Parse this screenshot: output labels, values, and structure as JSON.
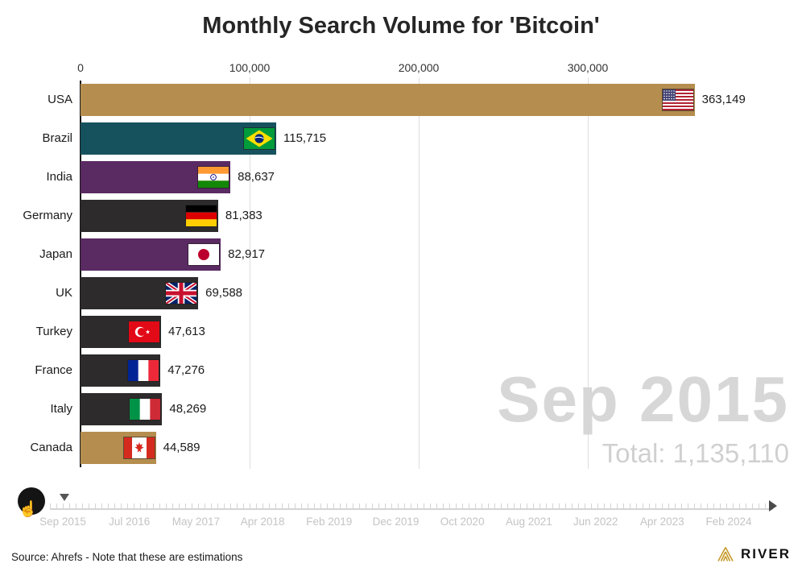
{
  "title": "Monthly Search Volume for 'Bitcoin'",
  "chart_data": {
    "type": "bar",
    "orientation": "horizontal",
    "current_period": "Sep 2015",
    "total_label": "Total: 1,135,110",
    "xlim": [
      0,
      380000
    ],
    "grid": true,
    "x_ticks": [
      {
        "label": "0",
        "value": 0
      },
      {
        "label": "100,000",
        "value": 100000
      },
      {
        "label": "200,000",
        "value": 200000
      },
      {
        "label": "300,000",
        "value": 300000
      }
    ],
    "bars": [
      {
        "country": "USA",
        "value": 363149,
        "label": "363,149",
        "color": "#b58e4f",
        "flag": "usa"
      },
      {
        "country": "Brazil",
        "value": 115715,
        "label": "115,715",
        "color": "#16525e",
        "flag": "brazil"
      },
      {
        "country": "India",
        "value": 88637,
        "label": "88,637",
        "color": "#5a2a62",
        "flag": "india"
      },
      {
        "country": "Germany",
        "value": 81383,
        "label": "81,383",
        "color": "#2d2b2c",
        "flag": "germany"
      },
      {
        "country": "Japan",
        "value": 82917,
        "label": "82,917",
        "color": "#5a2a62",
        "flag": "japan"
      },
      {
        "country": "UK",
        "value": 69588,
        "label": "69,588",
        "color": "#2d2b2c",
        "flag": "uk"
      },
      {
        "country": "Turkey",
        "value": 47613,
        "label": "47,613",
        "color": "#2d2b2c",
        "flag": "turkey"
      },
      {
        "country": "France",
        "value": 47276,
        "label": "47,276",
        "color": "#2d2b2c",
        "flag": "france"
      },
      {
        "country": "Italy",
        "value": 48269,
        "label": "48,269",
        "color": "#2d2b2c",
        "flag": "italy"
      },
      {
        "country": "Canada",
        "value": 44589,
        "label": "44,589",
        "color": "#b58e4f",
        "flag": "canada"
      }
    ]
  },
  "timeline": {
    "labels": [
      "Sep 2015",
      "Jul 2016",
      "May 2017",
      "Apr 2018",
      "Feb 2019",
      "Dec 2019",
      "Oct 2020",
      "Aug 2021",
      "Jun 2022",
      "Apr 2023",
      "Feb 2024"
    ],
    "marker_position": "Sep 2015"
  },
  "controls": {
    "play_icon_name": "hand-cursor-icon",
    "hand_glyph": "☝"
  },
  "colors": {
    "logo_gold": "#C79A2A",
    "bar_gold": "#b58e4f",
    "bar_teal": "#16525e",
    "bar_purple": "#5a2a62",
    "bar_dark": "#2d2b2c"
  },
  "footer": {
    "source": "Source: Ahrefs - Note that these are estimations",
    "brand": "RIVER"
  }
}
